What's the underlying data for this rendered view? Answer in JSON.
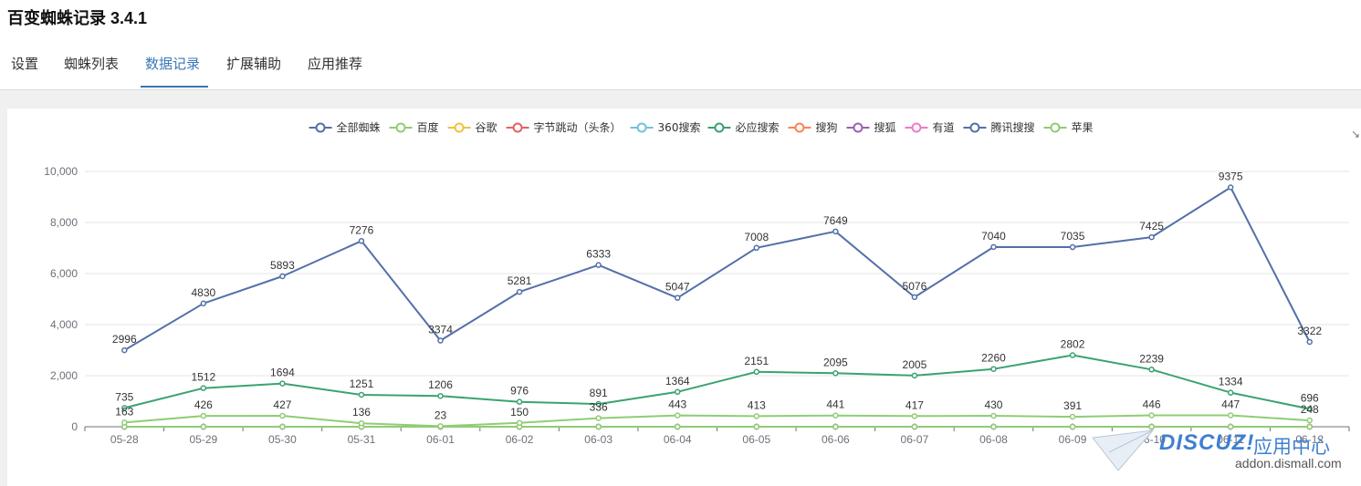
{
  "app": {
    "title": "百变蜘蛛记录 3.4.1"
  },
  "tabs": [
    {
      "label": "设置",
      "active": false
    },
    {
      "label": "蜘蛛列表",
      "active": false
    },
    {
      "label": "数据记录",
      "active": true
    },
    {
      "label": "扩展辅助",
      "active": false
    },
    {
      "label": "应用推荐",
      "active": false
    }
  ],
  "watermark": {
    "brand": "DISCUZ!",
    "app_text": "应用中心",
    "domain": "addon.dismall.com"
  },
  "chart_data": {
    "type": "line",
    "title": "",
    "xlabel": "",
    "ylabel": "",
    "ylim": [
      0,
      10000
    ],
    "y_ticks": [
      0,
      2000,
      4000,
      6000,
      8000,
      10000
    ],
    "y_tick_labels": [
      "0",
      "2,000",
      "4,000",
      "6,000",
      "8,000",
      "10,000"
    ],
    "grid": true,
    "legend_position": "top-center",
    "categories": [
      "05-28",
      "05-29",
      "05-30",
      "05-31",
      "06-01",
      "06-02",
      "06-03",
      "06-04",
      "06-05",
      "06-06",
      "06-07",
      "06-08",
      "06-09",
      "06-10",
      "06-11",
      "06-12"
    ],
    "series": [
      {
        "name": "全部蜘蛛",
        "color": "#5470a8",
        "show_labels": true,
        "values": [
          2996,
          4830,
          5893,
          7276,
          3374,
          5281,
          6333,
          5047,
          7008,
          7649,
          5076,
          7040,
          7035,
          7425,
          9375,
          3322
        ]
      },
      {
        "name": "百度",
        "color": "#91cc75",
        "show_labels": true,
        "values": [
          163,
          426,
          427,
          136,
          23,
          150,
          336,
          443,
          413,
          441,
          417,
          430,
          391,
          446,
          447,
          248
        ]
      },
      {
        "name": "谷歌",
        "color": "#f0c33c",
        "show_labels": false,
        "values": [
          0,
          0,
          0,
          0,
          0,
          0,
          0,
          0,
          0,
          0,
          0,
          0,
          0,
          0,
          0,
          0
        ]
      },
      {
        "name": "字节跳动（头条）",
        "color": "#e36363",
        "show_labels": false,
        "values": [
          0,
          0,
          0,
          0,
          0,
          0,
          0,
          0,
          0,
          0,
          0,
          0,
          0,
          0,
          0,
          0
        ]
      },
      {
        "name": "360搜索",
        "color": "#73c0de",
        "show_labels": false,
        "values": [
          0,
          0,
          0,
          0,
          0,
          0,
          0,
          0,
          0,
          0,
          0,
          0,
          0,
          0,
          0,
          0
        ]
      },
      {
        "name": "必应搜索",
        "color": "#3ba272",
        "show_labels": true,
        "values": [
          735,
          1512,
          1694,
          1251,
          1206,
          976,
          891,
          1364,
          2151,
          2095,
          2005,
          2260,
          2802,
          2239,
          1334,
          696
        ]
      },
      {
        "name": "搜狗",
        "color": "#fc8452",
        "show_labels": false,
        "values": [
          0,
          0,
          0,
          0,
          0,
          0,
          0,
          0,
          0,
          0,
          0,
          0,
          0,
          0,
          0,
          0
        ]
      },
      {
        "name": "搜狐",
        "color": "#9a60b4",
        "show_labels": false,
        "values": [
          0,
          0,
          0,
          0,
          0,
          0,
          0,
          0,
          0,
          0,
          0,
          0,
          0,
          0,
          0,
          0
        ]
      },
      {
        "name": "有道",
        "color": "#ea7ccc",
        "show_labels": false,
        "values": [
          0,
          0,
          0,
          0,
          0,
          0,
          0,
          0,
          0,
          0,
          0,
          0,
          0,
          0,
          0,
          0
        ]
      },
      {
        "name": "腾讯搜搜",
        "color": "#5470a8",
        "show_labels": false,
        "values": [
          0,
          0,
          0,
          0,
          0,
          0,
          0,
          0,
          0,
          0,
          0,
          0,
          0,
          0,
          0,
          0
        ]
      },
      {
        "name": "苹果",
        "color": "#91cc75",
        "show_labels": false,
        "values": [
          0,
          0,
          0,
          0,
          0,
          0,
          0,
          0,
          0,
          0,
          0,
          0,
          0,
          0,
          0,
          0
        ]
      }
    ]
  }
}
